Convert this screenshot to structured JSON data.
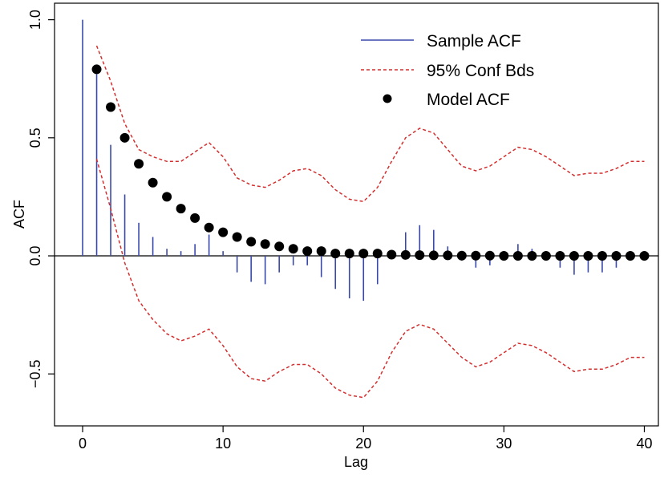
{
  "chart_data": {
    "type": "line",
    "title": "",
    "xlabel": "Lag",
    "ylabel": "ACF",
    "xlim": [
      -2,
      41
    ],
    "ylim": [
      -0.72,
      1.07
    ],
    "x_ticks": [
      0,
      10,
      20,
      30,
      40
    ],
    "x_tick_labels": [
      "0",
      "10",
      "20",
      "30",
      "40"
    ],
    "y_ticks": [
      -0.5,
      0.0,
      0.5,
      1.0
    ],
    "y_tick_labels": [
      "−0.5",
      "0.0",
      "0.5",
      "1.0"
    ],
    "grid": false,
    "legend_position": "top-right",
    "legend": {
      "sample": "Sample ACF",
      "bounds": "95% Conf Bds",
      "model": "Model ACF"
    },
    "colors": {
      "sample": "#3949ab",
      "bounds": "#d32f2f",
      "model": "#000000",
      "zero_line": "#000000"
    },
    "sample_acf": {
      "lags": [
        0,
        1,
        2,
        3,
        4,
        5,
        6,
        7,
        8,
        9,
        10,
        11,
        12,
        13,
        14,
        15,
        16,
        17,
        18,
        19,
        20,
        21,
        22,
        23,
        24,
        25,
        26,
        27,
        28,
        29,
        30,
        31,
        32,
        33,
        34,
        35,
        36,
        37,
        38,
        39,
        40
      ],
      "values": [
        1.0,
        0.77,
        0.47,
        0.26,
        0.14,
        0.08,
        0.03,
        0.02,
        0.05,
        0.09,
        0.02,
        -0.07,
        -0.11,
        -0.12,
        -0.07,
        -0.04,
        -0.04,
        -0.09,
        -0.14,
        -0.18,
        -0.19,
        -0.12,
        0.0,
        0.1,
        0.13,
        0.11,
        0.04,
        -0.02,
        -0.05,
        -0.04,
        -0.01,
        0.05,
        0.03,
        0.0,
        -0.05,
        -0.08,
        -0.07,
        -0.07,
        -0.05,
        -0.02,
        -0.01
      ]
    },
    "model_acf": {
      "lags": [
        1,
        2,
        3,
        4,
        5,
        6,
        7,
        8,
        9,
        10,
        11,
        12,
        13,
        14,
        15,
        16,
        17,
        18,
        19,
        20,
        21,
        22,
        23,
        24,
        25,
        26,
        27,
        28,
        29,
        30,
        31,
        32,
        33,
        34,
        35,
        36,
        37,
        38,
        39,
        40
      ],
      "values": [
        0.79,
        0.63,
        0.5,
        0.39,
        0.31,
        0.25,
        0.2,
        0.16,
        0.12,
        0.1,
        0.08,
        0.06,
        0.05,
        0.04,
        0.03,
        0.02,
        0.02,
        0.01,
        0.01,
        0.01,
        0.01,
        0.005,
        0.004,
        0.003,
        0.002,
        0.002,
        0.001,
        0.001,
        0.001,
        0.0,
        0.0,
        0.0,
        0.0,
        0.0,
        0.0,
        0.0,
        0.0,
        0.0,
        0.0,
        0.0
      ]
    },
    "conf_bounds": {
      "x": [
        1,
        2,
        3,
        4,
        5,
        6,
        7,
        8,
        9,
        10,
        11,
        12,
        13,
        14,
        15,
        16,
        17,
        18,
        19,
        20,
        21,
        22,
        23,
        24,
        25,
        26,
        27,
        28,
        29,
        30,
        31,
        32,
        33,
        34,
        35,
        36,
        37,
        38,
        39,
        40
      ],
      "upper": [
        0.89,
        0.74,
        0.56,
        0.45,
        0.42,
        0.4,
        0.4,
        0.44,
        0.48,
        0.42,
        0.33,
        0.3,
        0.29,
        0.32,
        0.36,
        0.37,
        0.34,
        0.28,
        0.24,
        0.23,
        0.29,
        0.4,
        0.5,
        0.54,
        0.52,
        0.45,
        0.38,
        0.36,
        0.38,
        0.42,
        0.46,
        0.45,
        0.42,
        0.38,
        0.34,
        0.35,
        0.35,
        0.37,
        0.4,
        0.4
      ],
      "lower": [
        0.41,
        0.2,
        -0.03,
        -0.19,
        -0.27,
        -0.33,
        -0.36,
        -0.34,
        -0.31,
        -0.38,
        -0.47,
        -0.52,
        -0.53,
        -0.49,
        -0.46,
        -0.46,
        -0.5,
        -0.56,
        -0.59,
        -0.6,
        -0.53,
        -0.41,
        -0.32,
        -0.29,
        -0.31,
        -0.37,
        -0.43,
        -0.47,
        -0.45,
        -0.41,
        -0.37,
        -0.38,
        -0.41,
        -0.45,
        -0.49,
        -0.48,
        -0.48,
        -0.46,
        -0.43,
        -0.43
      ]
    }
  }
}
